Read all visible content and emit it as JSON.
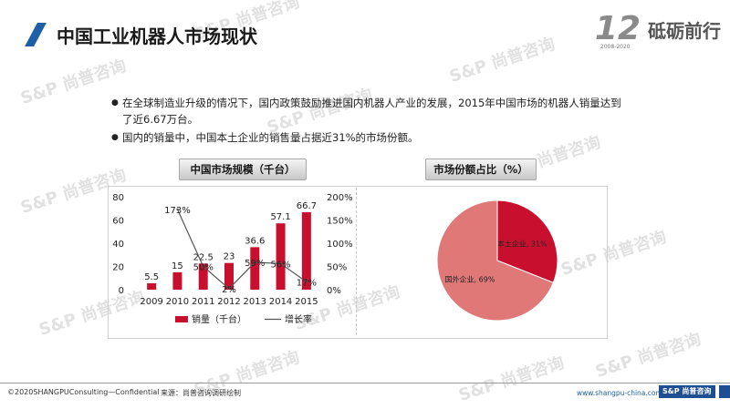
{
  "header": {
    "title": "中国工业机器人市场现状",
    "brand_mark": "12",
    "brand_years": "2008-2020",
    "brand_text": "砥砺前行"
  },
  "watermark_text": "S&P 尚普咨询",
  "bullets": [
    "在全球制造业升级的情况下，国内政策鼓励推进国内机器人产业的发展，2015年中国市场的机器人销量达到了近6.67万台。",
    "国内的销量中，中国本土企业的销售量占据近31%的市场份额。"
  ],
  "colors": {
    "accent_blue": "#1f5fa8",
    "bar_red": "#c8102e",
    "pie_local": "#c8102e",
    "pie_foreign": "#e07878"
  },
  "chart_data": [
    {
      "type": "bar",
      "title": "中国市场规模（千台）",
      "categories": [
        "2009",
        "2010",
        "2011",
        "2012",
        "2013",
        "2014",
        "2015"
      ],
      "series": [
        {
          "name": "销量（千台）",
          "type": "bar",
          "axis": "left",
          "values": [
            5.5,
            15,
            22.5,
            23,
            36.6,
            57.1,
            66.7
          ]
        },
        {
          "name": "增长率",
          "type": "line",
          "axis": "right",
          "values": [
            0,
            173,
            50,
            2,
            59,
            56,
            17
          ]
        }
      ],
      "data_labels": [
        "5.5",
        "15",
        "22.5",
        "23",
        "36.6",
        "57.1",
        "66.7"
      ],
      "line_labels": [
        "",
        "173%",
        "50%",
        "2%",
        "59%",
        "56%",
        "17%"
      ],
      "y_left_ticks": [
        "0",
        "20",
        "40",
        "60",
        "80"
      ],
      "y_right_ticks": [
        "0%",
        "50%",
        "100%",
        "150%",
        "200%"
      ],
      "ylim_left": [
        0,
        80
      ],
      "ylim_right": [
        0,
        200
      ],
      "legend": [
        "销量（千台）",
        "增长率"
      ],
      "legend_position": "bottom",
      "grid": false
    },
    {
      "type": "pie",
      "title": "市场份额占比（%）",
      "labels": [
        "本土企业",
        "国外企业"
      ],
      "values": [
        31,
        69
      ],
      "slice_labels": [
        "本土企业, 31%",
        "国外企业, 69%"
      ]
    }
  ],
  "footer": {
    "copyright": "©2020SHANGPUConsulting—Confidential",
    "source": "来源：尚普咨询调研绘制",
    "url": "www.shangpu-china.com",
    "logo": "S&P 尚普咨询"
  }
}
